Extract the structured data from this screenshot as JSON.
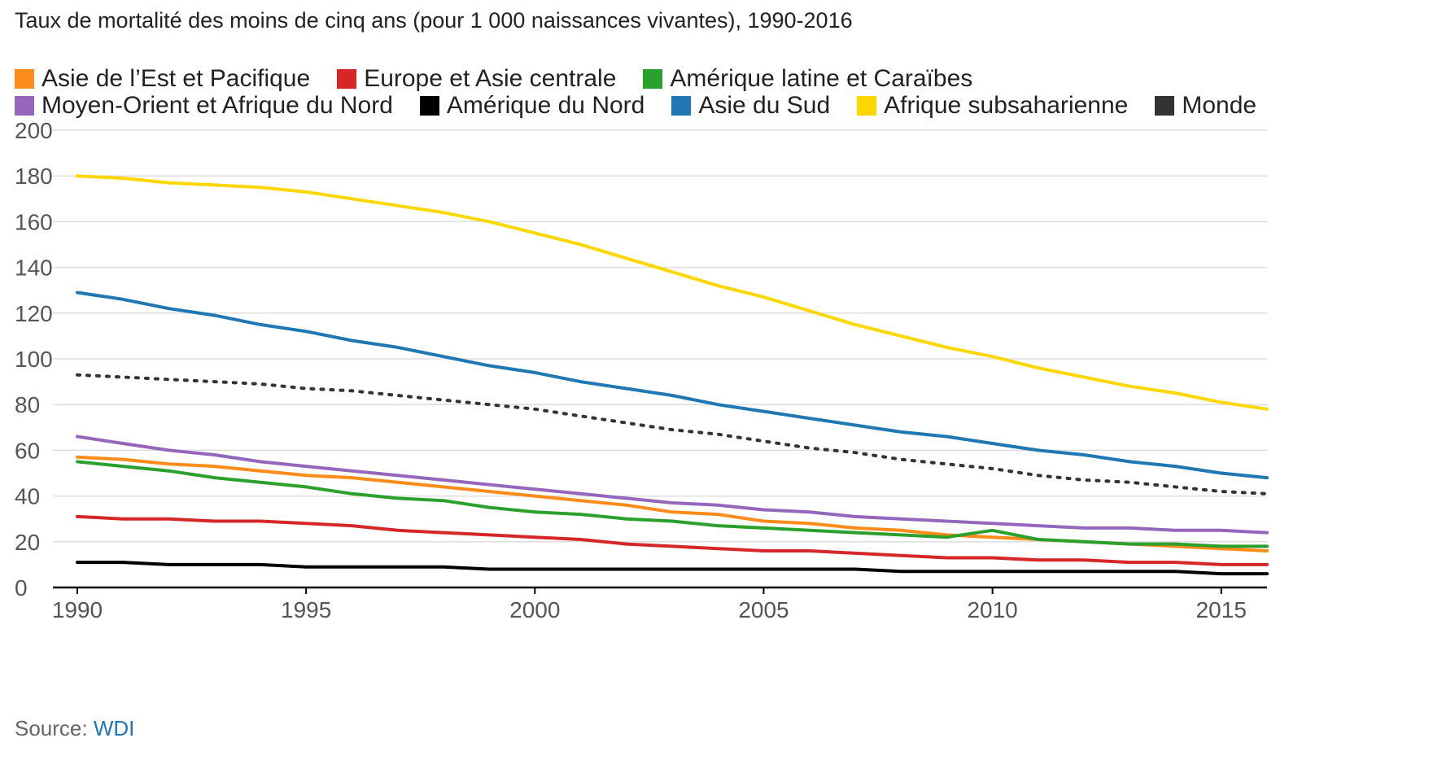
{
  "chart_data": {
    "type": "line",
    "title": "Taux de mortalité des moins de cinq ans (pour 1 000 naissances vivantes), 1990-2016",
    "xlabel": "",
    "ylabel": "",
    "ylim": [
      0,
      200
    ],
    "xlim": [
      1990,
      2016
    ],
    "grid": true,
    "legend_position": "top",
    "yticks": [
      "0",
      "20",
      "40",
      "60",
      "80",
      "100",
      "120",
      "140",
      "160",
      "180",
      "200"
    ],
    "xticks": [
      "1990",
      "1995",
      "2000",
      "2005",
      "2010",
      "2015"
    ],
    "x": [
      1990,
      1991,
      1992,
      1993,
      1994,
      1995,
      1996,
      1997,
      1998,
      1999,
      2000,
      2001,
      2002,
      2003,
      2004,
      2005,
      2006,
      2007,
      2008,
      2009,
      2010,
      2011,
      2012,
      2013,
      2014,
      2015,
      2016
    ],
    "series": [
      {
        "name": "Asie de l’Est et Pacifique",
        "color": "#ff8c1a",
        "style": "solid",
        "values": [
          57,
          56,
          54,
          53,
          51,
          49,
          48,
          46,
          44,
          42,
          40,
          38,
          36,
          33,
          32,
          29,
          28,
          26,
          25,
          23,
          22,
          21,
          20,
          19,
          18,
          17,
          16
        ]
      },
      {
        "name": "Europe et Asie centrale",
        "color": "#d62728",
        "style": "solid",
        "values": [
          31,
          30,
          30,
          29,
          29,
          28,
          27,
          25,
          24,
          23,
          22,
          21,
          19,
          18,
          17,
          16,
          16,
          15,
          14,
          13,
          13,
          12,
          12,
          11,
          11,
          10,
          10
        ]
      },
      {
        "name": "Amérique latine et Caraïbes",
        "color": "#2ca02c",
        "style": "solid",
        "values": [
          55,
          53,
          51,
          48,
          46,
          44,
          41,
          39,
          38,
          35,
          33,
          32,
          30,
          29,
          27,
          26,
          25,
          24,
          23,
          22,
          25,
          21,
          20,
          19,
          19,
          18,
          18
        ]
      },
      {
        "name": "Moyen-Orient et Afrique du Nord",
        "color": "#9467bd",
        "style": "solid",
        "values": [
          66,
          63,
          60,
          58,
          55,
          53,
          51,
          49,
          47,
          45,
          43,
          41,
          39,
          37,
          36,
          34,
          33,
          31,
          30,
          29,
          28,
          27,
          26,
          26,
          25,
          25,
          24
        ]
      },
      {
        "name": "Amérique du Nord",
        "color": "#000000",
        "style": "solid",
        "values": [
          11,
          11,
          10,
          10,
          10,
          9,
          9,
          9,
          9,
          8,
          8,
          8,
          8,
          8,
          8,
          8,
          8,
          8,
          7,
          7,
          7,
          7,
          7,
          7,
          7,
          6,
          6
        ]
      },
      {
        "name": "Asie du Sud",
        "color": "#1f77b4",
        "style": "solid",
        "values": [
          129,
          126,
          122,
          119,
          115,
          112,
          108,
          105,
          101,
          97,
          94,
          90,
          87,
          84,
          80,
          77,
          74,
          71,
          68,
          66,
          63,
          60,
          58,
          55,
          53,
          50,
          48
        ]
      },
      {
        "name": "Afrique subsaharienne",
        "color": "#ffd700",
        "style": "solid",
        "values": [
          180,
          179,
          177,
          176,
          175,
          173,
          170,
          167,
          164,
          160,
          155,
          150,
          144,
          138,
          132,
          127,
          121,
          115,
          110,
          105,
          101,
          96,
          92,
          88,
          85,
          81,
          78
        ]
      },
      {
        "name": "Monde",
        "color": "#333333",
        "style": "dotted",
        "values": [
          93,
          92,
          91,
          90,
          89,
          87,
          86,
          84,
          82,
          80,
          78,
          75,
          72,
          69,
          67,
          64,
          61,
          59,
          56,
          54,
          52,
          49,
          47,
          46,
          44,
          42,
          41
        ]
      }
    ]
  },
  "legend_rows": [
    [
      0,
      1,
      2
    ],
    [
      3,
      4,
      5,
      6,
      7
    ]
  ],
  "source": {
    "label": "Source: ",
    "link": "WDI",
    "link_color": "#1f77b4"
  }
}
